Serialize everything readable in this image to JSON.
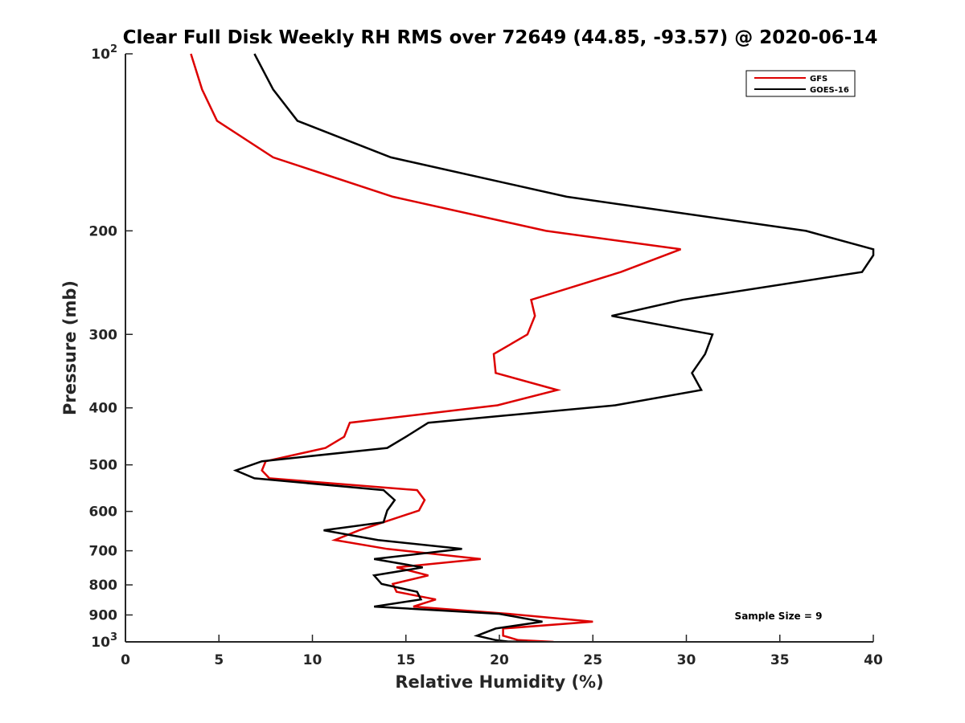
{
  "chart_data": {
    "type": "line",
    "title": "Clear Full Disk Weekly RH RMS over 72649 (44.85, -93.57) @ 2020-06-14",
    "xlabel": "Relative Humidity (%)",
    "ylabel": "Pressure (mb)",
    "xlim": [
      0,
      40
    ],
    "ylim": [
      100,
      1000
    ],
    "y_scale": "log",
    "y_reversed": true,
    "x_ticks": [
      "0",
      "5",
      "10",
      "15",
      "20",
      "25",
      "30",
      "35",
      "40"
    ],
    "y_ticks": [
      {
        "value": 100,
        "base": "10",
        "exp": "2"
      },
      {
        "value": 200,
        "label": "200"
      },
      {
        "value": 300,
        "label": "300"
      },
      {
        "value": 400,
        "label": "400"
      },
      {
        "value": 500,
        "label": "500"
      },
      {
        "value": 600,
        "label": "600"
      },
      {
        "value": 700,
        "label": "700"
      },
      {
        "value": 800,
        "label": "800"
      },
      {
        "value": 900,
        "label": "900"
      },
      {
        "value": 1000,
        "base": "10",
        "exp": "3"
      }
    ],
    "legend_position": "top-right",
    "annotation": "Sample Size = 9",
    "series": [
      {
        "name": "GFS",
        "color": "#dd0000",
        "points": [
          [
            3.5,
            100
          ],
          [
            4.1,
            115
          ],
          [
            4.9,
            130
          ],
          [
            7.9,
            150
          ],
          [
            14.3,
            175
          ],
          [
            22.5,
            200
          ],
          [
            29.7,
            215
          ],
          [
            26.5,
            235
          ],
          [
            21.7,
            262
          ],
          [
            21.9,
            279
          ],
          [
            21.5,
            300
          ],
          [
            19.7,
            324
          ],
          [
            19.8,
            349
          ],
          [
            23.1,
            373
          ],
          [
            19.9,
            396
          ],
          [
            12.0,
            424
          ],
          [
            11.7,
            448
          ],
          [
            10.7,
            468
          ],
          [
            7.5,
            493
          ],
          [
            7.3,
            511
          ],
          [
            7.7,
            527
          ],
          [
            15.6,
            552
          ],
          [
            16.0,
            574
          ],
          [
            15.7,
            598
          ],
          [
            13.8,
            626
          ],
          [
            12.5,
            646
          ],
          [
            11.2,
            671
          ],
          [
            14.0,
            695
          ],
          [
            19.0,
            723
          ],
          [
            14.5,
            747
          ],
          [
            16.2,
            771
          ],
          [
            14.3,
            797
          ],
          [
            14.5,
            822
          ],
          [
            16.6,
            847
          ],
          [
            15.4,
            871
          ],
          [
            20.5,
            896
          ],
          [
            25.0,
            924
          ],
          [
            20.2,
            949
          ],
          [
            20.2,
            976
          ],
          [
            21.0,
            993
          ],
          [
            22.9,
            1000
          ]
        ]
      },
      {
        "name": "GOES-16",
        "color": "#000000",
        "points": [
          [
            6.9,
            100
          ],
          [
            7.9,
            115
          ],
          [
            9.2,
            130
          ],
          [
            14.2,
            150
          ],
          [
            23.6,
            175
          ],
          [
            36.4,
            200
          ],
          [
            40.0,
            215
          ],
          [
            40.0,
            220
          ],
          [
            39.4,
            235
          ],
          [
            29.8,
            262
          ],
          [
            26.0,
            279
          ],
          [
            31.4,
            300
          ],
          [
            31.0,
            324
          ],
          [
            30.3,
            349
          ],
          [
            30.8,
            373
          ],
          [
            26.2,
            396
          ],
          [
            16.2,
            424
          ],
          [
            15.0,
            448
          ],
          [
            14.0,
            468
          ],
          [
            7.3,
            493
          ],
          [
            5.9,
            511
          ],
          [
            6.9,
            527
          ],
          [
            13.8,
            552
          ],
          [
            14.4,
            574
          ],
          [
            14.0,
            598
          ],
          [
            13.8,
            626
          ],
          [
            10.6,
            646
          ],
          [
            13.5,
            671
          ],
          [
            18.0,
            695
          ],
          [
            13.3,
            723
          ],
          [
            15.9,
            747
          ],
          [
            13.3,
            771
          ],
          [
            13.7,
            797
          ],
          [
            15.6,
            822
          ],
          [
            15.8,
            847
          ],
          [
            13.3,
            871
          ],
          [
            20.0,
            896
          ],
          [
            22.3,
            924
          ],
          [
            19.8,
            949
          ],
          [
            18.8,
            976
          ],
          [
            19.8,
            993
          ],
          [
            20.6,
            1000
          ],
          [
            20.2,
            998
          ],
          [
            21.5,
            1000
          ]
        ]
      }
    ]
  }
}
